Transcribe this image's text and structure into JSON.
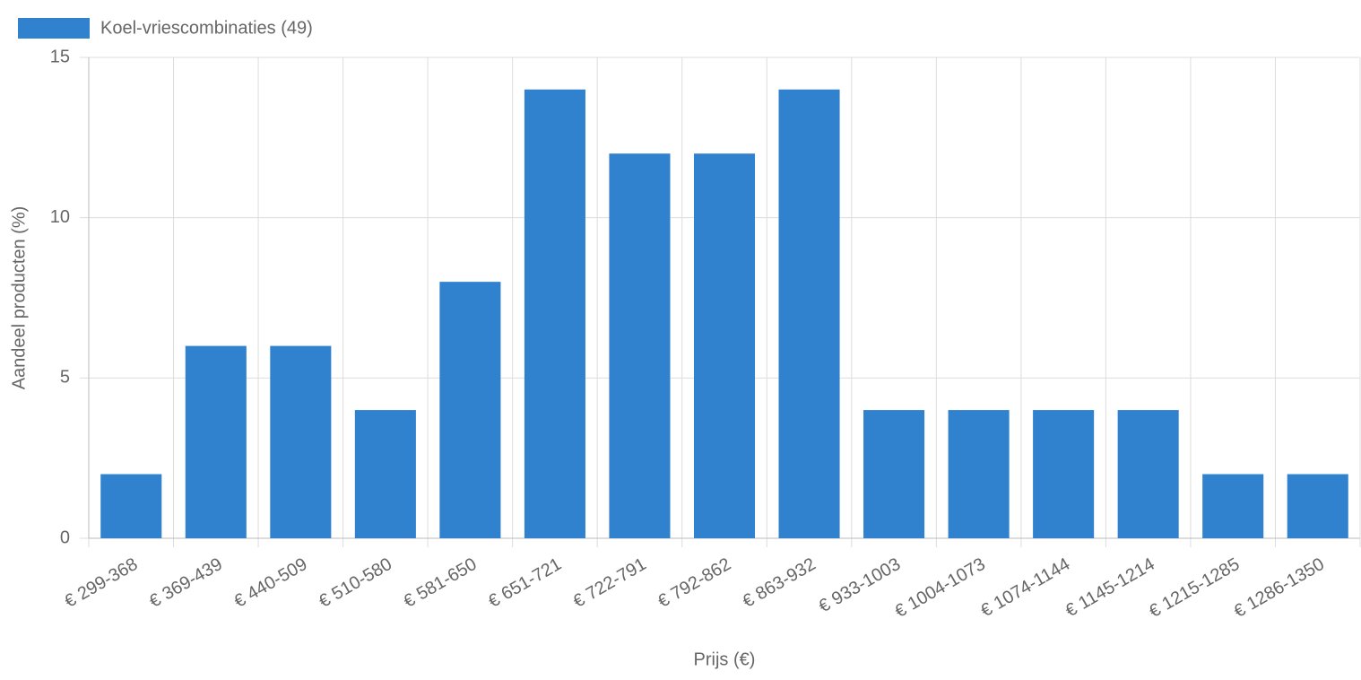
{
  "chart_data": {
    "type": "bar",
    "x_label": "Prijs (€)",
    "y_label": "Aandeel producten (%)",
    "categories": [
      "€ 299-368",
      "€ 369-439",
      "€ 440-509",
      "€ 510-580",
      "€ 581-650",
      "€ 651-721",
      "€ 722-791",
      "€ 792-862",
      "€ 863-932",
      "€ 933-1003",
      "€ 1004-1073",
      "€ 1074-1144",
      "€ 1145-1214",
      "€ 1215-1285",
      "€ 1286-1350"
    ],
    "series": [
      {
        "name": "Koel-vriescombinaties (49)",
        "color": "#3182ce",
        "values": [
          2,
          6,
          6,
          4,
          8,
          14,
          12,
          12,
          14,
          4,
          4,
          4,
          4,
          2,
          2
        ]
      }
    ],
    "ylim": [
      0,
      15
    ],
    "yticks": [
      0,
      5,
      10,
      15
    ],
    "grid": true
  }
}
